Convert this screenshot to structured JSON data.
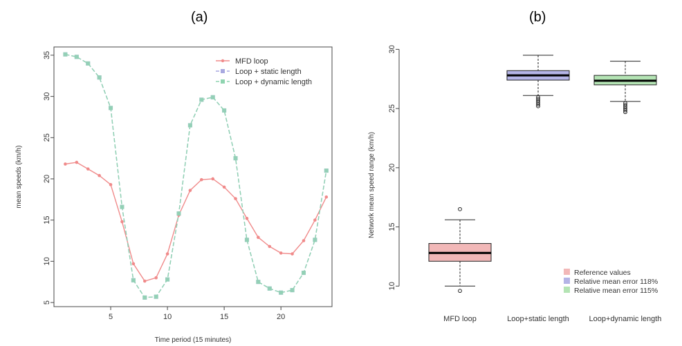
{
  "panel_labels": [
    "(a)",
    "(b)"
  ],
  "chart_data": [
    {
      "type": "line",
      "title": "",
      "xlabel": "Time period (15 minutes)",
      "ylabel": "mean speeds (km/h)",
      "xlim": [
        0,
        24.5
      ],
      "ylim": [
        4.5,
        36
      ],
      "xticks": [
        5,
        10,
        15,
        20
      ],
      "yticks": [
        5,
        10,
        15,
        20,
        25,
        30,
        35
      ],
      "grid": false,
      "legend_position": "top-right",
      "x": [
        1,
        2,
        3,
        4,
        5,
        6,
        7,
        8,
        9,
        10,
        11,
        12,
        13,
        14,
        15,
        16,
        17,
        18,
        19,
        20,
        21,
        22,
        23,
        24
      ],
      "series": [
        {
          "name": "MFD loop",
          "color": "#f08a8a",
          "values": [
            21.8,
            22.0,
            21.2,
            20.4,
            19.3,
            14.8,
            9.7,
            7.6,
            8.0,
            10.9,
            15.6,
            18.6,
            19.9,
            20.0,
            19.0,
            17.6,
            15.2,
            12.9,
            11.8,
            11.0,
            10.9,
            12.5,
            15.0,
            17.8
          ]
        },
        {
          "name": "Loop + static length",
          "color": "#a8a8e0",
          "values": [
            35.1,
            34.8,
            34.0,
            32.3,
            28.6,
            16.6,
            7.7,
            5.6,
            5.7,
            7.8,
            15.8,
            26.5,
            29.6,
            29.9,
            28.3,
            22.5,
            12.6,
            7.5,
            6.7,
            6.2,
            6.5,
            8.6,
            12.6,
            21.0
          ]
        },
        {
          "name": "Loop + dynamic length",
          "color": "#8fd4b0",
          "values": [
            35.1,
            34.8,
            34.0,
            32.3,
            28.6,
            16.6,
            7.7,
            5.6,
            5.7,
            7.8,
            15.8,
            26.5,
            29.6,
            29.9,
            28.3,
            22.5,
            12.6,
            7.5,
            6.7,
            6.2,
            6.5,
            8.6,
            12.6,
            21.0
          ]
        }
      ]
    },
    {
      "type": "box",
      "title": "",
      "xlabel": "",
      "ylabel": "Network mean speed range (km/h)",
      "ylim": [
        9.2,
        30.2
      ],
      "yticks": [
        10,
        15,
        20,
        25,
        30
      ],
      "grid": false,
      "legend_position": "bottom-right",
      "categories": [
        "MFD loop",
        "Loop+static length",
        "Loop+dynamic length"
      ],
      "boxes": [
        {
          "name": "Reference values",
          "color": "#f2b8b8",
          "whisker_low": 10.0,
          "q1": 12.1,
          "median": 12.8,
          "q3": 13.6,
          "whisker_high": 15.6,
          "outliers": [
            9.6,
            16.5
          ]
        },
        {
          "name": "Relative mean error 118%",
          "color": "#b4b4e6",
          "whisker_low": 26.1,
          "q1": 27.4,
          "median": 27.8,
          "q3": 28.2,
          "whisker_high": 29.5,
          "outliers": [
            25.2,
            25.35,
            25.5,
            25.65,
            25.8,
            25.95
          ]
        },
        {
          "name": "Relative mean error 115%",
          "color": "#b4e4b4",
          "whisker_low": 25.6,
          "q1": 27.0,
          "median": 27.35,
          "q3": 27.8,
          "whisker_high": 29.0,
          "outliers": [
            24.7,
            24.85,
            25.0,
            25.15,
            25.3,
            25.45
          ]
        }
      ],
      "legend": [
        "Reference values",
        "Relative mean error 118%",
        "Relative mean error 115%"
      ]
    }
  ]
}
